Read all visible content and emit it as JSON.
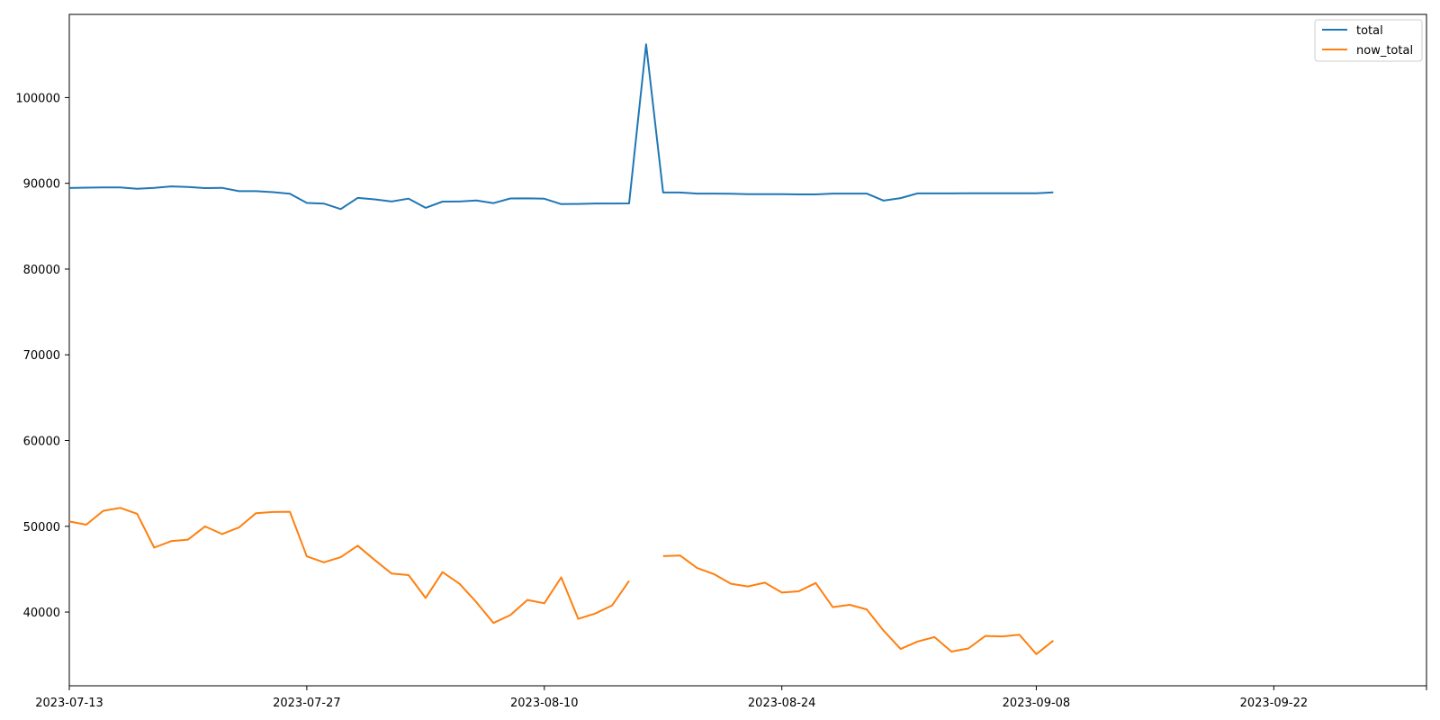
{
  "chart_data": {
    "type": "line",
    "title": "",
    "xlabel": "",
    "ylabel": "",
    "x_start": "2023-07-13",
    "x_end": "2023-10-01",
    "x": [
      "2023-07-13",
      "2023-07-14",
      "2023-07-15",
      "2023-07-16",
      "2023-07-17",
      "2023-07-18",
      "2023-07-19",
      "2023-07-20",
      "2023-07-21",
      "2023-07-22",
      "2023-07-23",
      "2023-07-24",
      "2023-07-25",
      "2023-07-26",
      "2023-07-27",
      "2023-07-28",
      "2023-07-29",
      "2023-07-30",
      "2023-07-31",
      "2023-08-01",
      "2023-08-02",
      "2023-08-03",
      "2023-08-04",
      "2023-08-05",
      "2023-08-06",
      "2023-08-07",
      "2023-08-08",
      "2023-08-09",
      "2023-08-10",
      "2023-08-11",
      "2023-08-12",
      "2023-08-13",
      "2023-08-14",
      "2023-08-15",
      "2023-08-16",
      "2023-08-17",
      "2023-08-18",
      "2023-08-19",
      "2023-08-20",
      "2023-08-21",
      "2023-08-22",
      "2023-08-23",
      "2023-08-24",
      "2023-08-25",
      "2023-08-26",
      "2023-08-27",
      "2023-08-28",
      "2023-08-29",
      "2023-08-30",
      "2023-08-31",
      "2023-09-01",
      "2023-09-02",
      "2023-09-03",
      "2023-09-04",
      "2023-09-05",
      "2023-09-06",
      "2023-09-07",
      "2023-09-08",
      "2023-09-09",
      "2023-09-10",
      "2023-09-11",
      "2023-09-12",
      "2023-09-13",
      "2023-09-14",
      "2023-09-15",
      "2023-09-16",
      "2023-09-17",
      "2023-09-18",
      "2023-09-19",
      "2023-09-20",
      "2023-09-21",
      "2023-09-22",
      "2023-09-23",
      "2023-09-24",
      "2023-09-25",
      "2023-09-26",
      "2023-09-27",
      "2023-09-28",
      "2023-09-29",
      "2023-09-30",
      "2023-10-01"
    ],
    "x_ticks": [
      "2023-07-13",
      "2023-07-27",
      "2023-08-10",
      "2023-08-24",
      "2023-09-08",
      "2023-09-22"
    ],
    "y_ticks": [
      40000,
      50000,
      60000,
      70000,
      80000,
      90000,
      100000
    ],
    "ylim": [
      31400,
      109700
    ],
    "series": [
      {
        "name": "total",
        "color": "#1f77b4",
        "points": [
          [
            "2023-07-13",
            89450
          ],
          [
            "2023-07-14",
            89500
          ],
          [
            "2023-07-15",
            89520
          ],
          [
            "2023-07-16",
            89520
          ],
          [
            "2023-07-17",
            89370
          ],
          [
            "2023-07-18",
            89470
          ],
          [
            "2023-07-19",
            89640
          ],
          [
            "2023-07-20",
            89570
          ],
          [
            "2023-07-21",
            89440
          ],
          [
            "2023-07-22",
            89470
          ],
          [
            "2023-07-23",
            89090
          ],
          [
            "2023-07-24",
            89090
          ],
          [
            "2023-07-25",
            88970
          ],
          [
            "2023-07-26",
            88790
          ],
          [
            "2023-07-27",
            87710
          ],
          [
            "2023-07-28",
            87640
          ],
          [
            "2023-07-29",
            87000
          ],
          [
            "2023-07-30",
            88300
          ],
          [
            "2023-07-31",
            88130
          ],
          [
            "2023-08-01",
            87880
          ],
          [
            "2023-08-02",
            88210
          ],
          [
            "2023-08-03",
            87140
          ],
          [
            "2023-08-04",
            87870
          ],
          [
            "2023-08-05",
            87880
          ],
          [
            "2023-08-06",
            88000
          ],
          [
            "2023-08-07",
            87690
          ],
          [
            "2023-08-08",
            88240
          ],
          [
            "2023-08-09",
            88250
          ],
          [
            "2023-08-10",
            88200
          ],
          [
            "2023-08-11",
            87570
          ],
          [
            "2023-08-12",
            87600
          ],
          [
            "2023-08-13",
            87650
          ],
          [
            "2023-08-14",
            87650
          ],
          [
            "2023-08-15",
            87660
          ],
          [
            "2023-08-16",
            106200
          ],
          [
            "2023-08-17",
            88930
          ],
          [
            "2023-08-18",
            88930
          ],
          [
            "2023-08-19",
            88800
          ],
          [
            "2023-08-20",
            88800
          ],
          [
            "2023-08-21",
            88790
          ],
          [
            "2023-08-22",
            88730
          ],
          [
            "2023-08-23",
            88730
          ],
          [
            "2023-08-24",
            88730
          ],
          [
            "2023-08-25",
            88710
          ],
          [
            "2023-08-26",
            88710
          ],
          [
            "2023-08-27",
            88800
          ],
          [
            "2023-08-28",
            88800
          ],
          [
            "2023-08-29",
            88800
          ],
          [
            "2023-08-30",
            87980
          ],
          [
            "2023-08-31",
            88280
          ],
          [
            "2023-09-01",
            88820
          ],
          [
            "2023-09-02",
            88820
          ],
          [
            "2023-09-03",
            88820
          ],
          [
            "2023-09-04",
            88840
          ],
          [
            "2023-09-05",
            88840
          ],
          [
            "2023-09-06",
            88840
          ],
          [
            "2023-09-07",
            88840
          ],
          [
            "2023-09-08",
            88840
          ],
          [
            "2023-09-09",
            88940
          ]
        ]
      },
      {
        "name": "now_total",
        "color": "#ff7f0e",
        "points": [
          [
            "2023-07-13",
            50570
          ],
          [
            "2023-07-14",
            50190
          ],
          [
            "2023-07-15",
            51800
          ],
          [
            "2023-07-16",
            52150
          ],
          [
            "2023-07-17",
            51460
          ],
          [
            "2023-07-18",
            47510
          ],
          [
            "2023-07-19",
            48270
          ],
          [
            "2023-07-20",
            48450
          ],
          [
            "2023-07-21",
            49990
          ],
          [
            "2023-07-22",
            49100
          ],
          [
            "2023-07-23",
            49860
          ],
          [
            "2023-07-24",
            51530
          ],
          [
            "2023-07-25",
            51670
          ],
          [
            "2023-07-26",
            51700
          ],
          [
            "2023-07-27",
            46490
          ],
          [
            "2023-07-28",
            45800
          ],
          [
            "2023-07-29",
            46400
          ],
          [
            "2023-07-30",
            47740
          ],
          [
            "2023-07-31",
            46070
          ],
          [
            "2023-08-01",
            44490
          ],
          [
            "2023-08-02",
            44310
          ],
          [
            "2023-08-03",
            41640
          ],
          [
            "2023-08-04",
            44660
          ],
          [
            "2023-08-05",
            43300
          ],
          [
            "2023-08-06",
            41140
          ],
          [
            "2023-08-07",
            38730
          ],
          [
            "2023-08-08",
            39650
          ],
          [
            "2023-08-09",
            41410
          ],
          [
            "2023-08-10",
            41020
          ],
          [
            "2023-08-11",
            44050
          ],
          [
            "2023-08-12",
            39210
          ],
          [
            "2023-08-13",
            39830
          ],
          [
            "2023-08-14",
            40780
          ],
          [
            "2023-08-15",
            43640
          ],
          [
            "2023-08-16",
            null
          ],
          [
            "2023-08-17",
            46520
          ],
          [
            "2023-08-18",
            46600
          ],
          [
            "2023-08-19",
            45140
          ],
          [
            "2023-08-20",
            44430
          ],
          [
            "2023-08-21",
            43300
          ],
          [
            "2023-08-22",
            42990
          ],
          [
            "2023-08-23",
            43430
          ],
          [
            "2023-08-24",
            42270
          ],
          [
            "2023-08-25",
            42420
          ],
          [
            "2023-08-26",
            43390
          ],
          [
            "2023-08-27",
            40570
          ],
          [
            "2023-08-28",
            40850
          ],
          [
            "2023-08-29",
            40310
          ],
          [
            "2023-08-30",
            37830
          ],
          [
            "2023-08-31",
            35690
          ],
          [
            "2023-09-01",
            36560
          ],
          [
            "2023-09-02",
            37080
          ],
          [
            "2023-09-03",
            35390
          ],
          [
            "2023-09-04",
            35760
          ],
          [
            "2023-09-05",
            37220
          ],
          [
            "2023-09-06",
            37160
          ],
          [
            "2023-09-07",
            37360
          ],
          [
            "2023-09-08",
            35090
          ],
          [
            "2023-09-09",
            36670
          ]
        ]
      }
    ],
    "legend": {
      "placement": "top-right",
      "entries": [
        "total",
        "now_total"
      ]
    },
    "grid": false
  }
}
